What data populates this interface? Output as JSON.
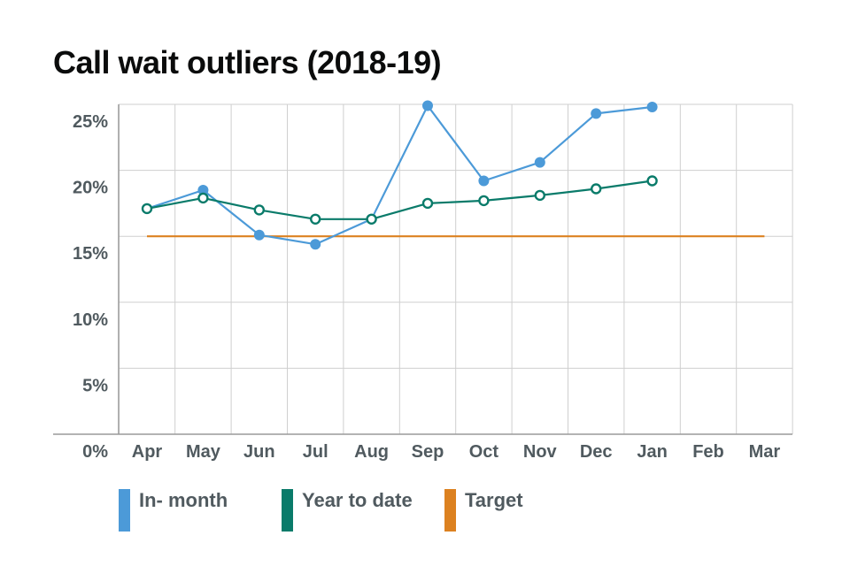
{
  "chart_data": {
    "type": "line",
    "title": "Call wait outliers (2018-19)",
    "xlabel": "",
    "ylabel": "",
    "categories": [
      "Apr",
      "May",
      "Jun",
      "Jul",
      "Aug",
      "Sep",
      "Oct",
      "Nov",
      "Dec",
      "Jan",
      "Feb",
      "Mar"
    ],
    "y_tick_labels": [
      "0%",
      "5%",
      "10%",
      "15%",
      "20%",
      "25%"
    ],
    "ylim": [
      0,
      25
    ],
    "grid": true,
    "legend_position": "bottom",
    "series": [
      {
        "name": "In- month",
        "color": "#4c9ad8",
        "marker": "filled-circle",
        "values": [
          17.1,
          18.5,
          15.1,
          14.4,
          16.3,
          24.9,
          19.2,
          20.6,
          24.3,
          24.8,
          null,
          null
        ]
      },
      {
        "name": "Year to date",
        "color": "#0a7b6a",
        "marker": "hollow-circle",
        "values": [
          17.1,
          17.9,
          17.0,
          16.3,
          16.3,
          17.5,
          17.7,
          18.1,
          18.6,
          19.2,
          null,
          null
        ]
      },
      {
        "name": "Target",
        "color": "#dc8120",
        "marker": "none",
        "values": [
          15,
          15,
          15,
          15,
          15,
          15,
          15,
          15,
          15,
          15,
          15,
          15
        ]
      }
    ]
  }
}
